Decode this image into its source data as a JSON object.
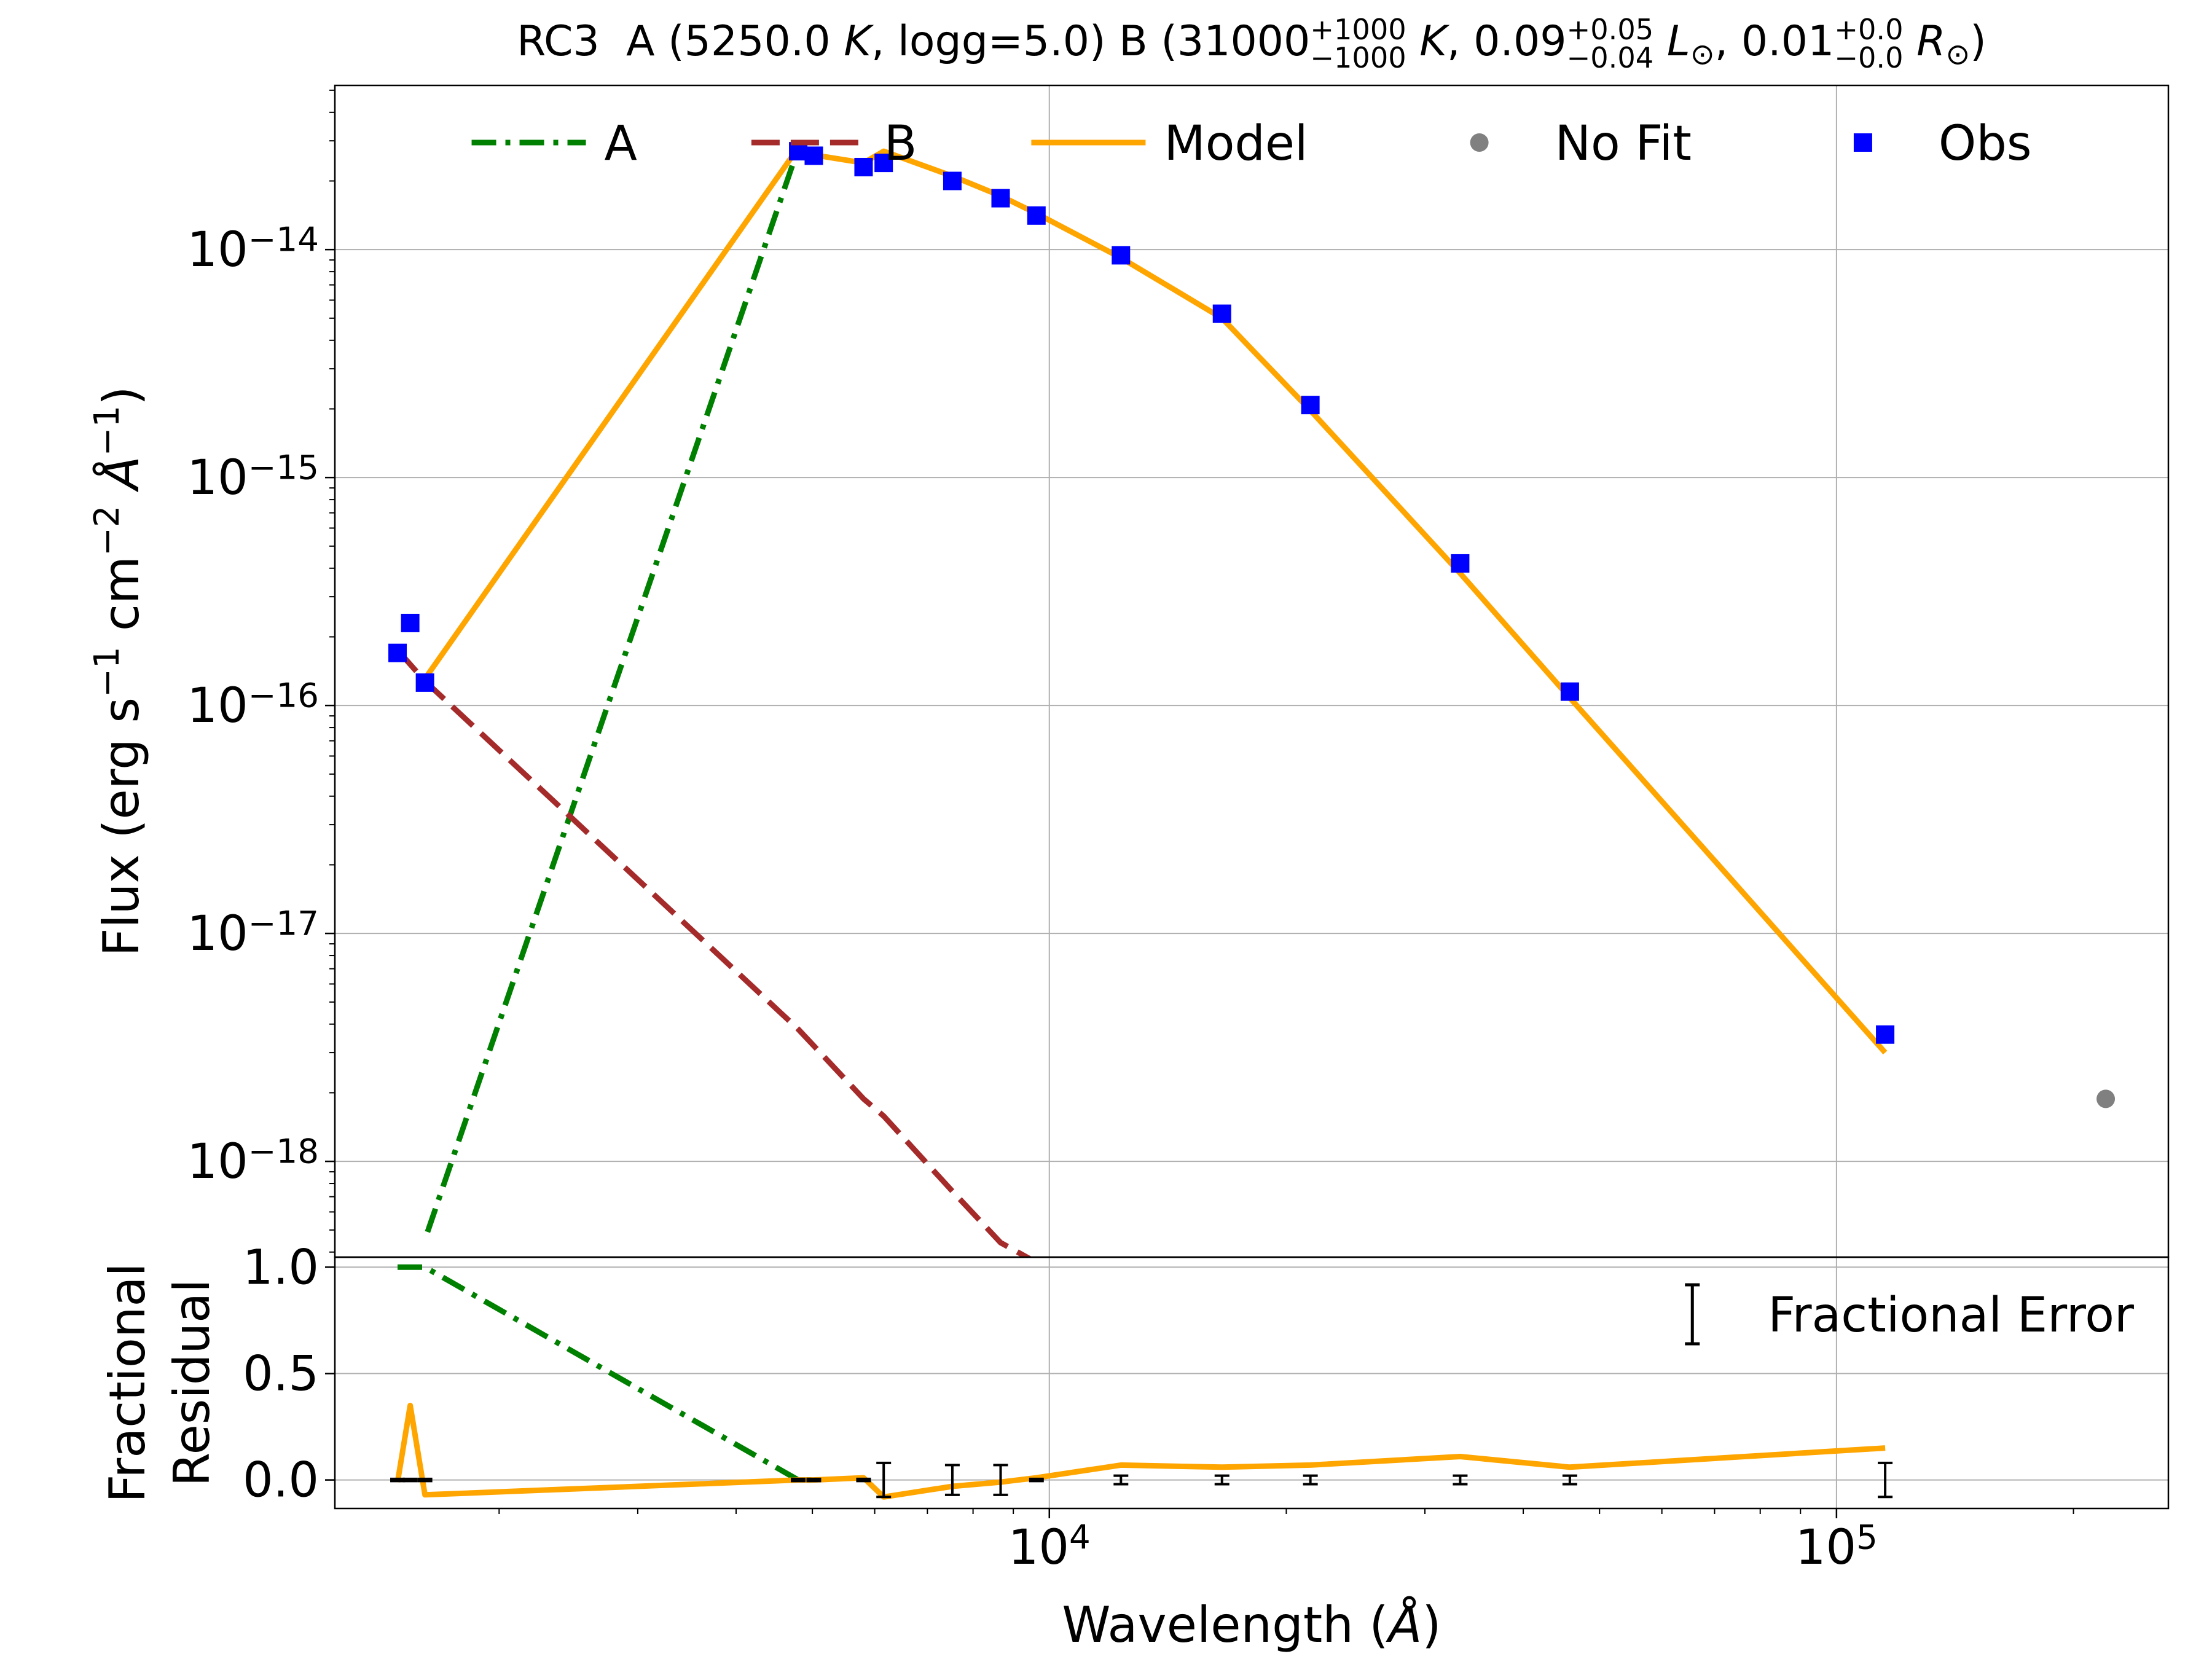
{
  "chart_data": [
    {
      "type": "line",
      "title": [
        {
          "text": "RC3  A (5250.0 "
        },
        {
          "text": "K",
          "italic": true
        },
        {
          "text": ", logg=5.0) B (31000"
        },
        {
          "sup": "+1000",
          "sub": "−1000"
        },
        {
          "text": " "
        },
        {
          "text": "K",
          "italic": true
        },
        {
          "text": ", 0.09"
        },
        {
          "sup": "+0.05",
          "sub": "−0.04"
        },
        {
          "text": " "
        },
        {
          "text": "L",
          "italic": true
        },
        {
          "text": "⊙",
          "shift": "sub"
        },
        {
          "text": ", 0.01"
        },
        {
          "sup": "+0.0",
          "sub": "−0.0"
        },
        {
          "text": " "
        },
        {
          "text": "R",
          "italic": true
        },
        {
          "text": "⊙",
          "shift": "sub"
        },
        {
          "text": ")"
        }
      ],
      "ylabel": [
        {
          "text": "Flux (erg s"
        },
        {
          "text": "−1",
          "shift": "sup"
        },
        {
          "text": " cm"
        },
        {
          "text": "−2",
          "shift": "sup"
        },
        {
          "text": " "
        },
        {
          "text": "Å",
          "italic": true
        },
        {
          "text": "−1",
          "shift": "sup"
        },
        {
          "text": ")"
        }
      ],
      "xscale": "log",
      "yscale": "log",
      "xlim": [
        1237,
        264000
      ],
      "ylim": [
        3.8e-19,
        5.25e-14
      ],
      "xticks": [
        10000,
        100000
      ],
      "yticks": [
        {
          "value": 1e-18,
          "label": "10−18"
        },
        {
          "value": 1e-17,
          "label": "10−17"
        },
        {
          "value": 1e-16,
          "label": "10−16"
        },
        {
          "value": 1e-15,
          "label": "10−15"
        },
        {
          "value": 1e-14,
          "label": "10−14"
        }
      ],
      "yminorticks": [
        4e-19,
        5e-19,
        6e-19,
        7e-19,
        8e-19,
        9e-19,
        2e-18,
        3e-18,
        4e-18,
        5e-18,
        6e-18,
        7e-18,
        8e-18,
        9e-18,
        2e-17,
        3e-17,
        4e-17,
        5e-17,
        6e-17,
        7e-17,
        8e-17,
        9e-17,
        2e-16,
        3e-16,
        4e-16,
        5e-16,
        6e-16,
        7e-16,
        8e-16,
        9e-16,
        2e-15,
        3e-15,
        4e-15,
        5e-15,
        6e-15,
        7e-15,
        8e-15,
        9e-15,
        2e-14,
        3e-14,
        4e-14,
        5e-14
      ],
      "grid": true,
      "legend": "upper center",
      "series": [
        {
          "name": "A",
          "color": "green",
          "style": "dashdot",
          "x": [
            1622,
            4797
          ],
          "values": [
            4.9e-19,
            2.78e-14
          ]
        },
        {
          "name": "B",
          "color": "brown",
          "style": "dashed",
          "x": [
            1486,
            1610,
            4797,
            5808,
            6160,
            7530,
            8672,
            9630
          ],
          "values": [
            1.75e-16,
            1.28e-16,
            3.8e-18,
            1.88e-18,
            1.58e-18,
            7.4e-19,
            4.4e-19,
            3.6e-19
          ]
        },
        {
          "name": "Model",
          "color": "orange",
          "style": "solid",
          "x": [
            1610,
            4797,
            5021,
            5808,
            6160,
            7530,
            8672,
            9630,
            12330,
            16570,
            21460,
            33260,
            45840,
            115300
          ],
          "values": [
            1.31e-16,
            2.8e-14,
            2.6e-14,
            2.4e-14,
            2.7e-14,
            2.1e-14,
            1.72e-14,
            1.44e-14,
            9.2e-15,
            5e-15,
            1.97e-15,
            3.8e-16,
            1.08e-16,
            3e-18
          ]
        },
        {
          "name": "No Fit",
          "color": "gray",
          "style": "circle",
          "x": [
            219800
          ],
          "values": [
            1.88e-18
          ]
        },
        {
          "name": "Obs",
          "color": "blue",
          "style": "square",
          "x": [
            1486,
            1542,
            1610,
            4797,
            5021,
            5808,
            6160,
            7530,
            8672,
            9630,
            12330,
            16570,
            21460,
            33260,
            45840,
            115300
          ],
          "values": [
            1.7e-16,
            2.3e-16,
            1.26e-16,
            2.7e-14,
            2.58e-14,
            2.3e-14,
            2.4e-14,
            2e-14,
            1.68e-14,
            1.41e-14,
            9.44e-15,
            5.23e-15,
            2.08e-15,
            4.2e-16,
            1.15e-16,
            3.6e-18
          ]
        }
      ]
    },
    {
      "type": "line",
      "ylabel": [
        "Fractional",
        "Residual"
      ],
      "xlabel": [
        {
          "text": "Wavelength ("
        },
        {
          "text": "Å",
          "italic": true
        },
        {
          "text": ")"
        }
      ],
      "xscale": "log",
      "yscale": "linear",
      "xlim": [
        1237,
        264000
      ],
      "ylim": [
        -0.134,
        1.047
      ],
      "xticks": [
        {
          "value": 10000,
          "label": "104"
        },
        {
          "value": 100000,
          "label": "105"
        }
      ],
      "xminorticks": [
        2000,
        3000,
        4000,
        5000,
        6000,
        7000,
        8000,
        9000,
        20000,
        30000,
        40000,
        50000,
        60000,
        70000,
        80000,
        90000,
        200000
      ],
      "yticks": [
        {
          "value": 0,
          "label": "0.0"
        },
        0.5,
        {
          "value": 1,
          "label": "1.0"
        }
      ],
      "grid": true,
      "legend": "upper right",
      "series": [
        {
          "color": "green",
          "style": "dashdot",
          "x": [
            1486,
            1610,
            4797,
            5021
          ],
          "values": [
            1.0,
            1.0,
            0.0,
            0.0
          ]
        },
        {
          "color": "orange",
          "style": "solid",
          "x": [
            1486,
            1542,
            1610,
            4797,
            5021,
            5808,
            6160,
            7530,
            8672,
            9630,
            12330,
            16570,
            21460,
            33260,
            45840,
            115300
          ],
          "values": [
            -0.01,
            0.35,
            -0.07,
            0.0,
            0.0,
            0.01,
            -0.08,
            -0.03,
            -0.01,
            0.01,
            0.07,
            0.06,
            0.07,
            0.11,
            0.06,
            0.15
          ]
        },
        {
          "name": "Fractional Error",
          "color": "black",
          "style": "errorbar",
          "x": [
            1486,
            1542,
            1610,
            4797,
            5021,
            5808,
            6160,
            7530,
            8672,
            9630,
            12330,
            16570,
            21460,
            33260,
            45840,
            115300
          ],
          "values": [
            0,
            0,
            0,
            0,
            0,
            0,
            0,
            0,
            0,
            0,
            0,
            0,
            0,
            0,
            0,
            0
          ],
          "errors": [
            0.005,
            0.005,
            0.005,
            0.005,
            0.005,
            0.005,
            0.08,
            0.07,
            0.07,
            0.005,
            0.02,
            0.02,
            0.02,
            0.02,
            0.02,
            0.08
          ]
        }
      ]
    }
  ]
}
